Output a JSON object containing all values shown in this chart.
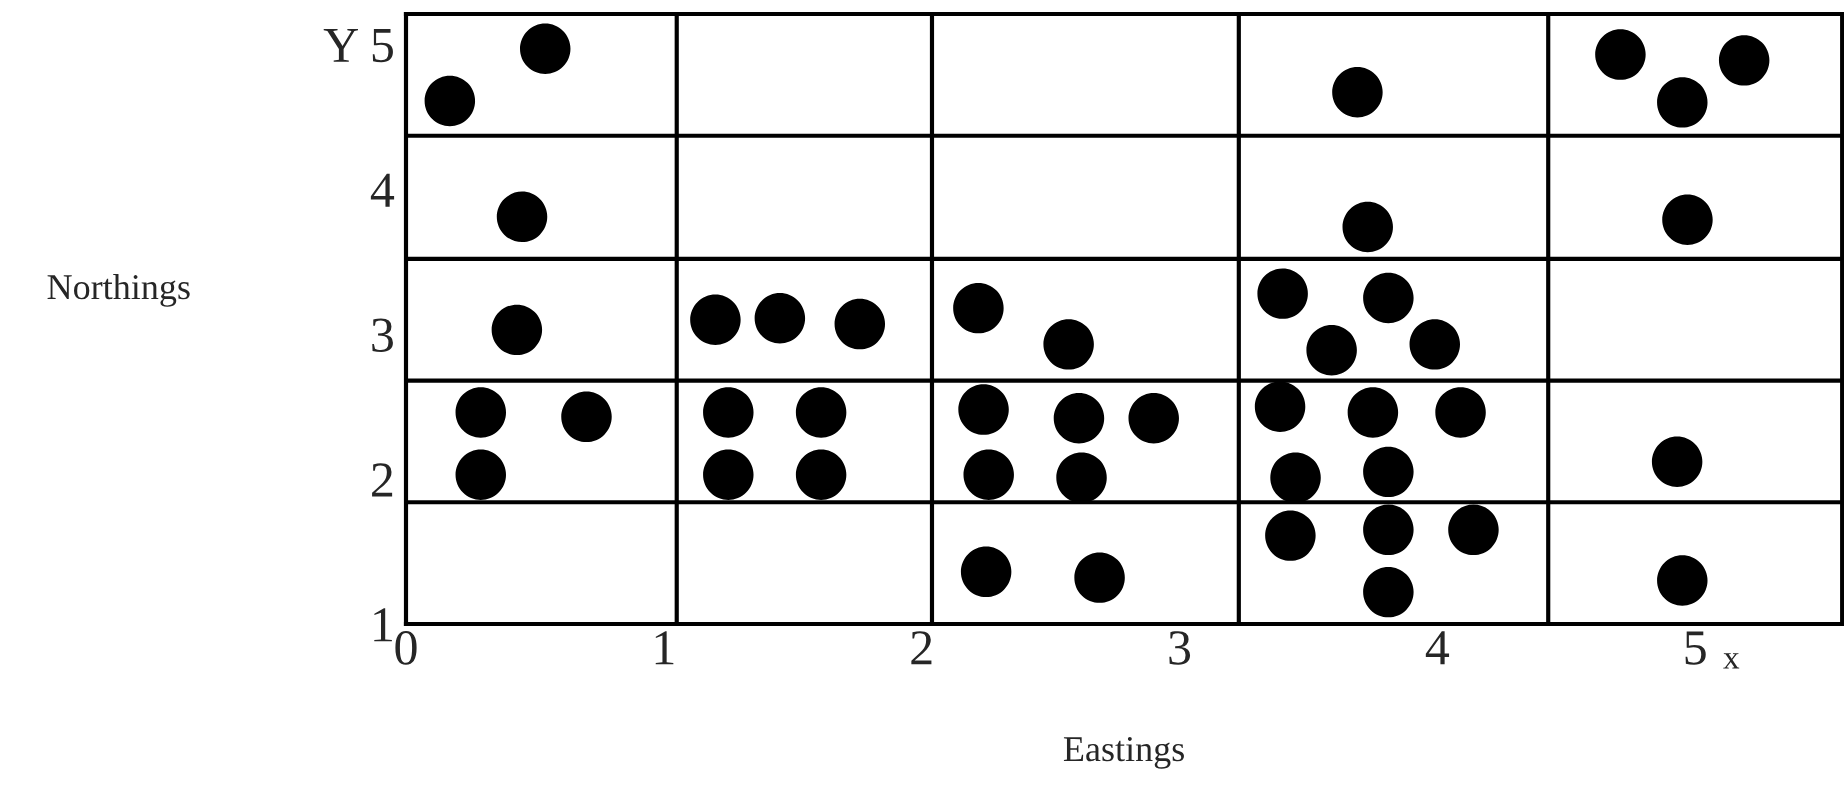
{
  "chart_data": {
    "type": "scatter",
    "xlabel": "Eastings",
    "ylabel": "Northings",
    "annotations": [
      "x"
    ],
    "marker": "circle",
    "grid": true,
    "xlim": [
      0,
      5.57
    ],
    "ylim": [
      1,
      5.21
    ],
    "xticks": [
      0,
      1,
      2,
      3,
      4,
      5,
      {
        "value": 1.05,
        "label": null
      },
      {
        "value": 2.04,
        "label": null
      },
      {
        "value": 3.23,
        "label": null
      },
      {
        "value": 4.43,
        "label": null
      }
    ],
    "yticks": [
      1,
      2,
      3,
      4,
      {
        "value": 5,
        "label": "Y 5"
      },
      {
        "value": 1.84,
        "label": null
      },
      {
        "value": 2.68,
        "label": null
      },
      {
        "value": 3.52,
        "label": null
      },
      {
        "value": 4.37,
        "label": null
      }
    ],
    "series": [
      {
        "color": "#000000",
        "x": [
          0.17,
          0.54,
          0.45,
          0.43,
          0.29,
          0.7,
          0.29,
          1.2,
          1.45,
          1.76,
          1.25,
          1.61,
          1.25,
          1.61,
          2.22,
          2.24,
          2.26,
          2.25,
          2.57,
          2.61,
          2.9,
          2.62,
          2.69,
          3.4,
          3.81,
          3.59,
          3.99,
          3.39,
          3.75,
          4.09,
          3.45,
          3.81,
          3.43,
          3.81,
          4.14,
          3.81,
          3.69,
          3.73,
          4.71,
          5.19,
          4.95,
          4.97,
          4.93,
          4.95
        ],
        "values": [
          4.61,
          4.97,
          3.81,
          3.03,
          2.46,
          2.43,
          2.03,
          3.1,
          3.11,
          3.07,
          2.46,
          2.46,
          2.03,
          2.03,
          3.18,
          2.48,
          2.03,
          1.36,
          2.93,
          2.42,
          2.42,
          2.01,
          1.32,
          3.28,
          3.25,
          2.89,
          2.93,
          2.5,
          2.46,
          2.46,
          2.01,
          2.05,
          1.61,
          1.65,
          1.65,
          1.22,
          4.67,
          3.74,
          4.93,
          4.89,
          4.6,
          3.79,
          2.12,
          1.3
        ]
      }
    ]
  }
}
